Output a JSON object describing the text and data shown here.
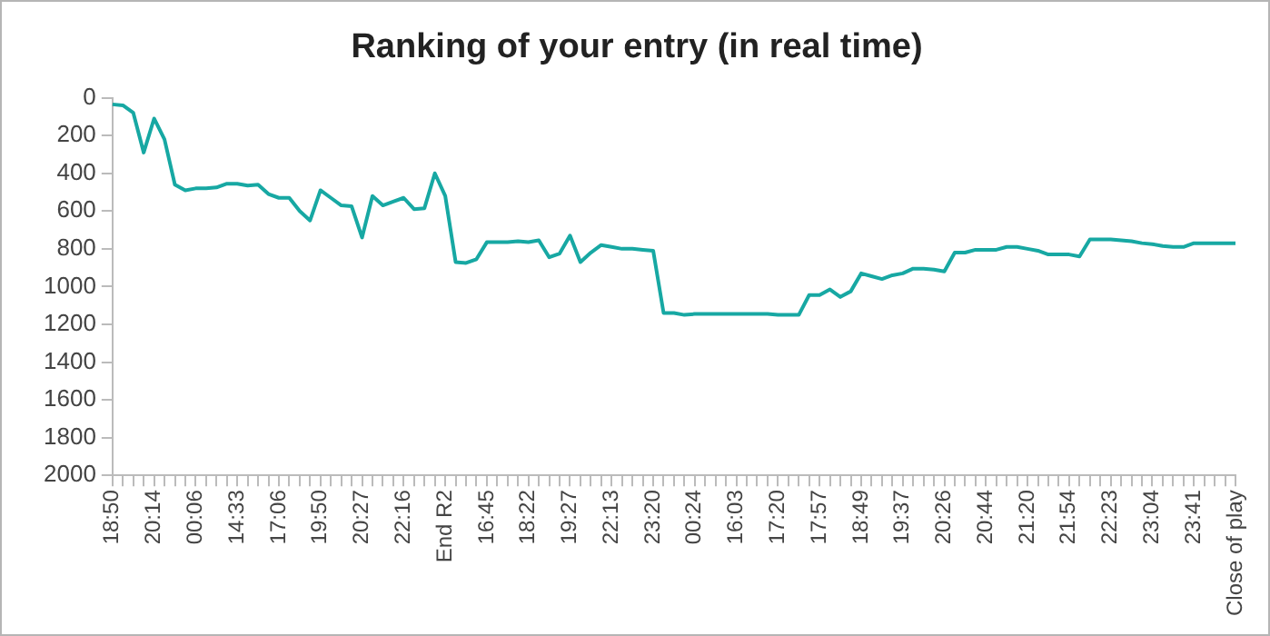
{
  "chart_data": {
    "type": "line",
    "title": "Ranking of your entry (in real time)",
    "categories": [
      "18:50",
      null,
      null,
      null,
      "20:14",
      null,
      null,
      null,
      "00:06",
      null,
      null,
      null,
      "14:33",
      null,
      null,
      null,
      "17:06",
      null,
      null,
      null,
      "19:50",
      null,
      null,
      null,
      "20:27",
      null,
      null,
      null,
      "22:16",
      null,
      null,
      null,
      "End R2",
      null,
      null,
      null,
      "16:45",
      null,
      null,
      null,
      "18:22",
      null,
      null,
      null,
      "19:27",
      null,
      null,
      null,
      "22:13",
      null,
      null,
      null,
      "23:20",
      null,
      null,
      null,
      "00:24",
      null,
      null,
      null,
      "16:03",
      null,
      null,
      null,
      "17:20",
      null,
      null,
      null,
      "17:57",
      null,
      null,
      null,
      "18:49",
      null,
      null,
      null,
      "19:37",
      null,
      null,
      null,
      "20:26",
      null,
      null,
      null,
      "20:44",
      null,
      null,
      null,
      "21:20",
      null,
      null,
      null,
      "21:54",
      null,
      null,
      null,
      "22:23",
      null,
      null,
      null,
      "23:04",
      null,
      null,
      null,
      "23:41",
      null,
      null,
      null,
      "Close of play"
    ],
    "series": [
      {
        "color": "#17a8a3",
        "values": [
          35,
          40,
          80,
          290,
          110,
          220,
          460,
          490,
          480,
          480,
          475,
          455,
          455,
          465,
          460,
          510,
          530,
          530,
          600,
          650,
          490,
          530,
          570,
          575,
          740,
          520,
          570,
          550,
          530,
          590,
          585,
          400,
          520,
          870,
          875,
          855,
          765,
          765,
          765,
          760,
          765,
          755,
          845,
          825,
          730,
          870,
          820,
          780,
          790,
          800,
          800,
          805,
          810,
          1140,
          1140,
          1150,
          1145,
          1145,
          1145,
          1145,
          1145,
          1145,
          1145,
          1145,
          1150,
          1150,
          1150,
          1045,
          1045,
          1015,
          1055,
          1025,
          930,
          945,
          960,
          940,
          930,
          905,
          905,
          910,
          920,
          820,
          820,
          805,
          805,
          805,
          790,
          790,
          800,
          810,
          830,
          830,
          830,
          840,
          750,
          750,
          750,
          755,
          760,
          770,
          775,
          785,
          790,
          790,
          770,
          770,
          770,
          770,
          770
        ]
      }
    ],
    "ylim": [
      2000,
      0
    ],
    "yticks": [
      0,
      200,
      400,
      600,
      800,
      1000,
      1200,
      1400,
      1600,
      1800,
      2000
    ],
    "grid": false,
    "legend": false,
    "marker": "none",
    "line_style": "solid"
  }
}
